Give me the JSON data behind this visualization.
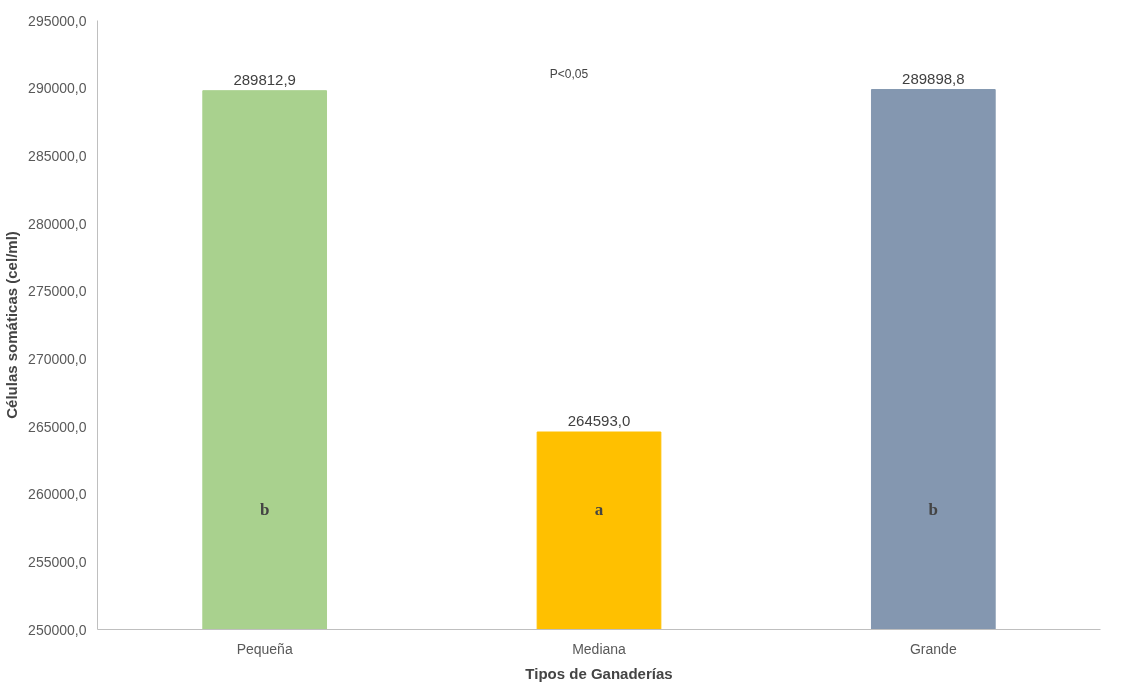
{
  "chart_data": {
    "type": "bar",
    "xlabel": "Tipos de Ganaderías",
    "ylabel": "Células somáticas (cel/ml)",
    "categories": [
      "Pequeña",
      "Mediana",
      "Grande"
    ],
    "values": [
      289812.9,
      264593.0,
      289898.8
    ],
    "colors": [
      "#a9d18e",
      "#ffc000",
      "#8497b0"
    ],
    "value_labels": [
      "289812,9",
      "264593,0",
      "289898,8"
    ],
    "ylim": [
      250000,
      295000
    ],
    "yticks": [
      {
        "value": 250000,
        "label": "250000,0"
      },
      {
        "value": 255000,
        "label": "255000,0"
      },
      {
        "value": 260000,
        "label": "260000,0"
      },
      {
        "value": 265000,
        "label": "265000,0"
      },
      {
        "value": 270000,
        "label": "270000,0"
      },
      {
        "value": 275000,
        "label": "275000,0"
      },
      {
        "value": 280000,
        "label": "280000,0"
      },
      {
        "value": 285000,
        "label": "285000,0"
      },
      {
        "value": 290000,
        "label": "290000,0"
      },
      {
        "value": 295000,
        "label": "295000,0"
      }
    ],
    "annotations": [
      "P<0,05",
      "b",
      "a",
      "b"
    ],
    "grid": false
  }
}
